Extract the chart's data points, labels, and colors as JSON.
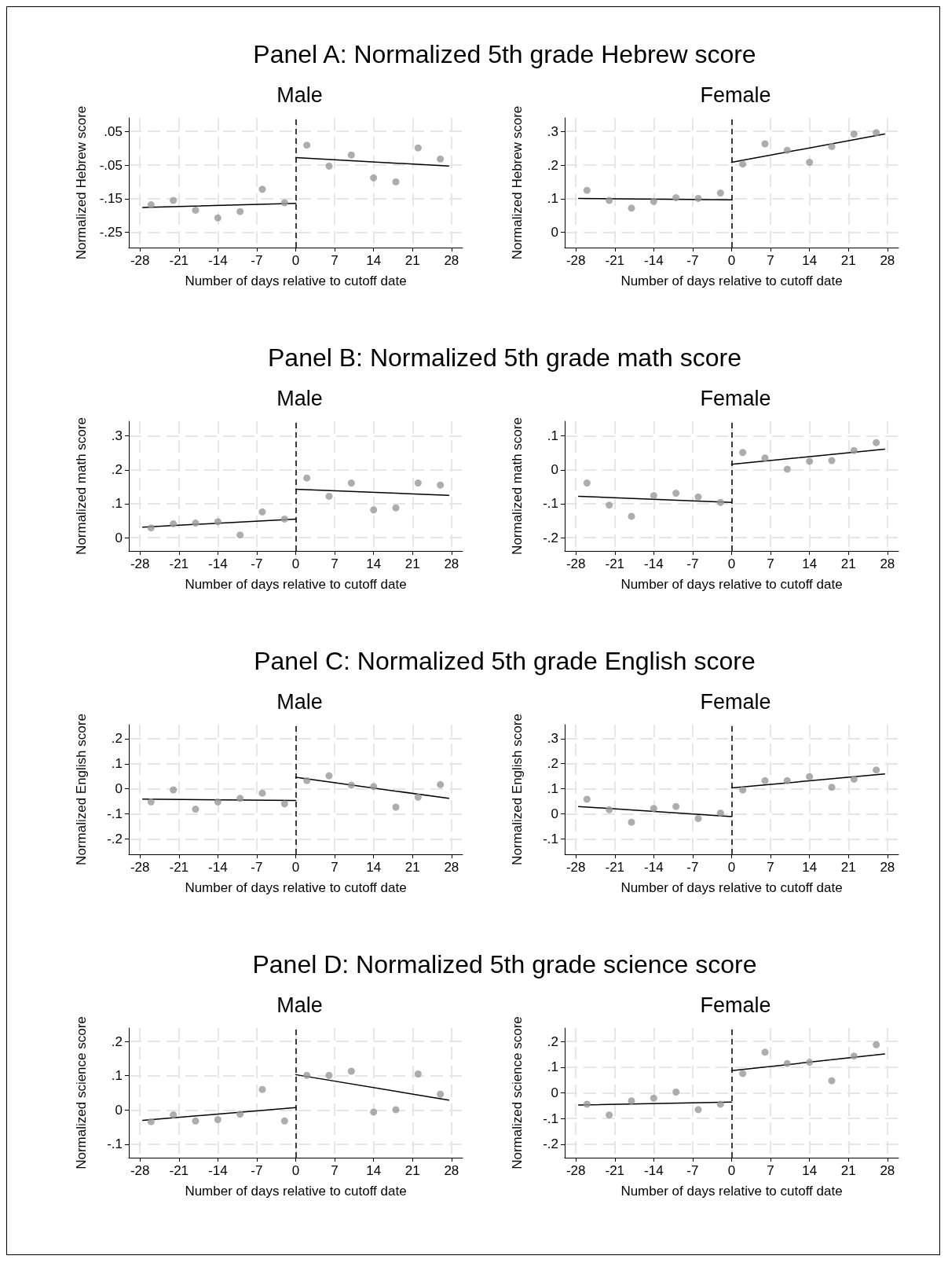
{
  "chart_data": [
    {
      "type": "scatter",
      "title": "Panel A: Normalized 5th grade Hebrew score",
      "subtitle": "Male",
      "xlabel": "Number of days relative to cutoff date",
      "ylabel": "Normalized Hebrew score",
      "x": [
        -26,
        -22,
        -18,
        -14,
        -10,
        -6,
        -2,
        2,
        6,
        10,
        14,
        18,
        22,
        26
      ],
      "xlim": [
        -30,
        30
      ],
      "xticks": [
        -28,
        -21,
        -14,
        -7,
        0,
        7,
        14,
        21,
        28
      ],
      "ylim": [
        -0.295,
        0.09
      ],
      "yticks": [
        {
          "value": 0.05,
          "label": ".05"
        },
        {
          "value": -0.05,
          "label": "-.05"
        },
        {
          "value": -0.15,
          "label": "-.15"
        },
        {
          "value": -0.25,
          "label": "-.25"
        }
      ],
      "grid": true,
      "series": [
        {
          "marker": "circle",
          "color": "#999999",
          "values": [
            -0.168,
            -0.155,
            -0.184,
            -0.207,
            -0.188,
            -0.122,
            -0.162,
            0.009,
            -0.053,
            -0.02,
            -0.088,
            -0.1,
            0.001,
            -0.032
          ]
        },
        {
          "type": "line",
          "color": "#000000",
          "x": [
            -27.5,
            0
          ],
          "values": [
            -0.176,
            -0.164
          ]
        },
        {
          "type": "line",
          "color": "#000000",
          "x": [
            0,
            27.5
          ],
          "values": [
            -0.028,
            -0.053
          ]
        }
      ],
      "ref_lines": [
        {
          "axis": "x",
          "value": 0,
          "color": "#000000",
          "line_style": "dashed"
        }
      ]
    },
    {
      "type": "scatter",
      "subtitle": "Female",
      "xlabel": "Number of days relative to cutoff date",
      "ylabel": "Normalized Hebrew score",
      "x": [
        -26,
        -22,
        -18,
        -14,
        -10,
        -6,
        -2,
        2,
        6,
        10,
        14,
        18,
        22,
        26
      ],
      "xlim": [
        -30,
        30
      ],
      "xticks": [
        -28,
        -21,
        -14,
        -7,
        0,
        7,
        14,
        21,
        28
      ],
      "ylim": [
        -0.045,
        0.34
      ],
      "yticks": [
        {
          "value": 0.3,
          "label": ".3"
        },
        {
          "value": 0.2,
          "label": ".2"
        },
        {
          "value": 0.1,
          "label": ".1"
        },
        {
          "value": 0,
          "label": "0"
        }
      ],
      "grid": true,
      "series": [
        {
          "marker": "circle",
          "color": "#999999",
          "values": [
            0.125,
            0.095,
            0.072,
            0.092,
            0.103,
            0.101,
            0.117,
            0.203,
            0.263,
            0.244,
            0.208,
            0.255,
            0.292,
            0.296
          ]
        },
        {
          "type": "line",
          "color": "#000000",
          "x": [
            -27.5,
            0
          ],
          "values": [
            0.101,
            0.097
          ]
        },
        {
          "type": "line",
          "color": "#000000",
          "x": [
            0,
            27.5
          ],
          "values": [
            0.208,
            0.292
          ]
        }
      ],
      "ref_lines": [
        {
          "axis": "x",
          "value": 0,
          "color": "#000000",
          "line_style": "dashed"
        }
      ]
    },
    {
      "type": "scatter",
      "title": "Panel B: Normalized 5th grade math score",
      "subtitle": "Male",
      "xlabel": "Number of days relative to cutoff date",
      "ylabel": "Normalized math score",
      "x": [
        -26,
        -22,
        -18,
        -14,
        -10,
        -6,
        -2,
        2,
        6,
        10,
        14,
        18,
        22,
        26
      ],
      "xlim": [
        -30,
        30
      ],
      "xticks": [
        -28,
        -21,
        -14,
        -7,
        0,
        7,
        14,
        21,
        28
      ],
      "ylim": [
        -0.039,
        0.343
      ],
      "yticks": [
        {
          "value": 0.3,
          "label": ".3"
        },
        {
          "value": 0.2,
          "label": ".2"
        },
        {
          "value": 0.1,
          "label": ".1"
        },
        {
          "value": 0,
          "label": "0"
        }
      ],
      "grid": true,
      "series": [
        {
          "marker": "circle",
          "color": "#999999",
          "values": [
            0.029,
            0.041,
            0.043,
            0.047,
            0.008,
            0.076,
            0.055,
            0.176,
            0.122,
            0.161,
            0.082,
            0.088,
            0.161,
            0.155
          ]
        },
        {
          "type": "line",
          "color": "#000000",
          "x": [
            -27.5,
            0
          ],
          "values": [
            0.031,
            0.055
          ]
        },
        {
          "type": "line",
          "color": "#000000",
          "x": [
            0,
            27.5
          ],
          "values": [
            0.143,
            0.125
          ]
        }
      ],
      "ref_lines": [
        {
          "axis": "x",
          "value": 0,
          "color": "#000000",
          "line_style": "dashed"
        }
      ]
    },
    {
      "type": "scatter",
      "subtitle": "Female",
      "xlabel": "Number of days relative to cutoff date",
      "ylabel": "Normalized math score",
      "x": [
        -26,
        -22,
        -18,
        -14,
        -10,
        -6,
        -2,
        2,
        6,
        10,
        14,
        18,
        22,
        26
      ],
      "xlim": [
        -30,
        30
      ],
      "xticks": [
        -28,
        -21,
        -14,
        -7,
        0,
        7,
        14,
        21,
        28
      ],
      "ylim": [
        -0.239,
        0.143
      ],
      "yticks": [
        {
          "value": 0.1,
          "label": ".1"
        },
        {
          "value": 0,
          "label": "0"
        },
        {
          "value": -0.1,
          "label": "-.1"
        },
        {
          "value": -0.2,
          "label": "-.2"
        }
      ],
      "grid": true,
      "series": [
        {
          "marker": "circle",
          "color": "#999999",
          "values": [
            -0.039,
            -0.104,
            -0.137,
            -0.076,
            -0.069,
            -0.08,
            -0.096,
            0.051,
            0.035,
            0.002,
            0.025,
            0.027,
            0.057,
            0.08
          ]
        },
        {
          "type": "line",
          "color": "#000000",
          "x": [
            -27.5,
            0
          ],
          "values": [
            -0.078,
            -0.096
          ]
        },
        {
          "type": "line",
          "color": "#000000",
          "x": [
            0,
            27.5
          ],
          "values": [
            0.016,
            0.061
          ]
        }
      ],
      "ref_lines": [
        {
          "axis": "x",
          "value": 0,
          "color": "#000000",
          "line_style": "dashed"
        }
      ]
    },
    {
      "type": "scatter",
      "title": "Panel C: Normalized 5th grade English score",
      "subtitle": "Male",
      "xlabel": "Number of days relative to cutoff date",
      "ylabel": "Normalized English score",
      "x": [
        -26,
        -22,
        -18,
        -14,
        -10,
        -6,
        -2,
        2,
        6,
        10,
        14,
        18,
        22,
        26
      ],
      "xlim": [
        -30,
        30
      ],
      "xticks": [
        -28,
        -21,
        -14,
        -7,
        0,
        7,
        14,
        21,
        28
      ],
      "ylim": [
        -0.261,
        0.256
      ],
      "yticks": [
        {
          "value": 0.2,
          "label": ".2"
        },
        {
          "value": 0.1,
          "label": ".1"
        },
        {
          "value": 0,
          "label": "0"
        },
        {
          "value": -0.1,
          "label": "-.1"
        },
        {
          "value": -0.2,
          "label": "-.2"
        }
      ],
      "grid": true,
      "series": [
        {
          "marker": "circle",
          "color": "#999999",
          "values": [
            -0.052,
            -0.004,
            -0.081,
            -0.052,
            -0.038,
            -0.017,
            -0.06,
            0.033,
            0.052,
            0.015,
            0.009,
            -0.073,
            -0.033,
            0.017
          ]
        },
        {
          "type": "line",
          "color": "#000000",
          "x": [
            -27.5,
            0
          ],
          "values": [
            -0.041,
            -0.046
          ]
        },
        {
          "type": "line",
          "color": "#000000",
          "x": [
            0,
            27.5
          ],
          "values": [
            0.046,
            -0.038
          ]
        }
      ],
      "ref_lines": [
        {
          "axis": "x",
          "value": 0,
          "color": "#000000",
          "line_style": "dashed"
        }
      ]
    },
    {
      "type": "scatter",
      "subtitle": "Female",
      "xlabel": "Number of days relative to cutoff date",
      "ylabel": "Normalized English score",
      "x": [
        -26,
        -22,
        -18,
        -14,
        -10,
        -6,
        -2,
        2,
        6,
        10,
        14,
        18,
        22,
        26
      ],
      "xlim": [
        -30,
        30
      ],
      "xticks": [
        -28,
        -21,
        -14,
        -7,
        0,
        7,
        14,
        21,
        28
      ],
      "ylim": [
        -0.162,
        0.356
      ],
      "yticks": [
        {
          "value": 0.3,
          "label": ".3"
        },
        {
          "value": 0.2,
          "label": ".2"
        },
        {
          "value": 0.1,
          "label": ".1"
        },
        {
          "value": 0,
          "label": "0"
        },
        {
          "value": -0.1,
          "label": "-.1"
        }
      ],
      "grid": true,
      "series": [
        {
          "marker": "circle",
          "color": "#999999",
          "values": [
            0.058,
            0.016,
            -0.034,
            0.021,
            0.029,
            -0.019,
            0.003,
            0.095,
            0.132,
            0.132,
            0.148,
            0.106,
            0.138,
            0.175
          ]
        },
        {
          "type": "line",
          "color": "#000000",
          "x": [
            -27.5,
            0
          ],
          "values": [
            0.029,
            -0.011
          ]
        },
        {
          "type": "line",
          "color": "#000000",
          "x": [
            0,
            27.5
          ],
          "values": [
            0.103,
            0.159
          ]
        }
      ],
      "ref_lines": [
        {
          "axis": "x",
          "value": 0,
          "color": "#000000",
          "line_style": "dashed"
        }
      ]
    },
    {
      "type": "scatter",
      "title": "Panel D: Normalized 5th grade science score",
      "subtitle": "Male",
      "xlabel": "Number of days relative to cutoff date",
      "ylabel": "Normalized science score",
      "x": [
        -26,
        -22,
        -18,
        -14,
        -10,
        -6,
        -2,
        2,
        6,
        10,
        14,
        18,
        22,
        26
      ],
      "xlim": [
        -30,
        30
      ],
      "xticks": [
        -28,
        -21,
        -14,
        -7,
        0,
        7,
        14,
        21,
        28
      ],
      "ylim": [
        -0.139,
        0.239
      ],
      "yticks": [
        {
          "value": 0.2,
          "label": ".2"
        },
        {
          "value": 0.1,
          "label": ".1"
        },
        {
          "value": 0,
          "label": "0"
        },
        {
          "value": -0.1,
          "label": "-.1"
        }
      ],
      "grid": true,
      "series": [
        {
          "marker": "circle",
          "color": "#999999",
          "values": [
            -0.034,
            -0.014,
            -0.032,
            -0.028,
            -0.012,
            0.06,
            -0.032,
            0.101,
            0.101,
            0.113,
            -0.006,
            0.001,
            0.105,
            0.046
          ]
        },
        {
          "type": "line",
          "color": "#000000",
          "x": [
            -27.5,
            0
          ],
          "values": [
            -0.03,
            0.007
          ]
        },
        {
          "type": "line",
          "color": "#000000",
          "x": [
            0,
            27.5
          ],
          "values": [
            0.103,
            0.029
          ]
        }
      ],
      "ref_lines": [
        {
          "axis": "x",
          "value": 0,
          "color": "#000000",
          "line_style": "dashed"
        }
      ]
    },
    {
      "type": "scatter",
      "subtitle": "Female",
      "xlabel": "Number of days relative to cutoff date",
      "ylabel": "Normalized science score",
      "x": [
        -26,
        -22,
        -18,
        -14,
        -10,
        -6,
        -2,
        2,
        6,
        10,
        14,
        18,
        22,
        26
      ],
      "xlim": [
        -30,
        30
      ],
      "xticks": [
        -28,
        -21,
        -14,
        -7,
        0,
        7,
        14,
        21,
        28
      ],
      "ylim": [
        -0.252,
        0.252
      ],
      "yticks": [
        {
          "value": 0.2,
          "label": ".2"
        },
        {
          "value": 0.1,
          "label": ".1"
        },
        {
          "value": 0,
          "label": "0"
        },
        {
          "value": -0.1,
          "label": "-.1"
        },
        {
          "value": -0.2,
          "label": "-.2"
        }
      ],
      "grid": true,
      "series": [
        {
          "marker": "circle",
          "color": "#999999",
          "values": [
            -0.044,
            -0.086,
            -0.031,
            -0.021,
            0.003,
            -0.065,
            -0.044,
            0.075,
            0.158,
            0.114,
            0.119,
            0.047,
            0.143,
            0.187
          ]
        },
        {
          "type": "line",
          "color": "#000000",
          "x": [
            -27.5,
            0
          ],
          "values": [
            -0.047,
            -0.036
          ]
        },
        {
          "type": "line",
          "color": "#000000",
          "x": [
            0,
            27.5
          ],
          "values": [
            0.086,
            0.151
          ]
        }
      ],
      "ref_lines": [
        {
          "axis": "x",
          "value": 0,
          "color": "#000000",
          "line_style": "dashed"
        }
      ]
    }
  ]
}
